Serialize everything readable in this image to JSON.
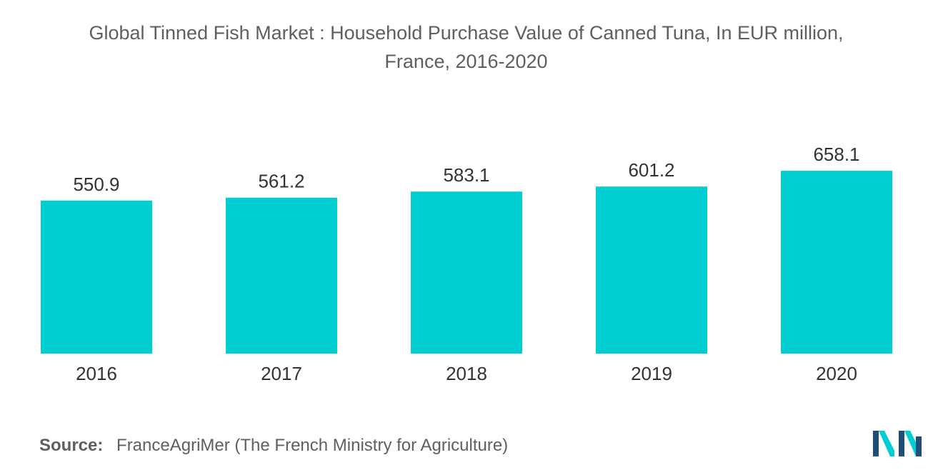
{
  "chart_data": {
    "type": "bar",
    "title": "Global Tinned Fish Market : Household Purchase Value of Canned Tuna, In EUR million,",
    "subtitle": "France, 2016-2020",
    "categories": [
      "2016",
      "2017",
      "2018",
      "2019",
      "2020"
    ],
    "values": [
      550.9,
      561.2,
      583.1,
      601.2,
      658.1
    ],
    "value_labels": [
      "550.9",
      "561.2",
      "583.1",
      "601.2",
      "658.1"
    ],
    "xlabel": "",
    "ylabel": "",
    "grid": false,
    "legend": "none",
    "bar_color": "#00ced1"
  },
  "source": {
    "label": "Source:",
    "text": "FranceAgriMer (The French Ministry for Agriculture)"
  },
  "logo": {
    "icon": "mordor-intelligence-logo",
    "colors": [
      "#1f4e79",
      "#00ced1"
    ]
  }
}
